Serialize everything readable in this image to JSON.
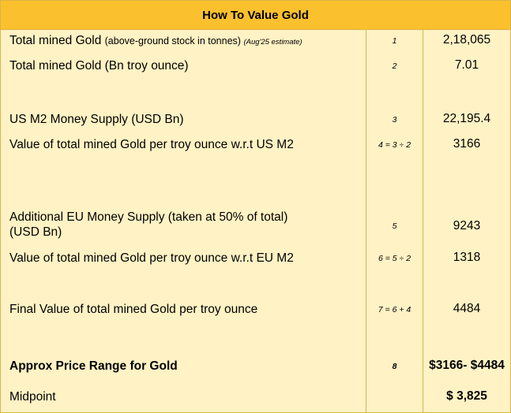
{
  "title": "How To Value Gold",
  "rows": [
    {
      "label": "Total mined Gold",
      "note": "(above-ground stock in tonnes)",
      "note_italic": "(Aug'25 estimate)",
      "index": "1",
      "value": "2,18,065"
    },
    {
      "label": "Total mined Gold (Bn troy ounce)",
      "index": "2",
      "value": "7.01"
    },
    {
      "label": "US M2 Money Supply (USD Bn)",
      "index": "3",
      "value": "22,195.4"
    },
    {
      "label": "Value of total mined Gold per troy ounce w.r.t US M2",
      "index": "4 = 3 ÷ 2",
      "value": "3166"
    },
    {
      "label": "Additional EU Money Supply (taken at 50% of total)",
      "label2": "(USD Bn)",
      "index": "5",
      "value": "9243"
    },
    {
      "label": "Value of total mined Gold per troy ounce w.r.t EU M2",
      "index": "6 = 5 ÷ 2",
      "value": "1318"
    },
    {
      "label": "Final Value of total mined Gold per troy ounce",
      "index": "7 = 6 + 4",
      "value": "4484"
    },
    {
      "label": "Approx Price Range for Gold",
      "index": "8",
      "value": "$3166- $4484"
    },
    {
      "label": "Midpoint",
      "index": "",
      "value": "$ 3,825"
    }
  ]
}
